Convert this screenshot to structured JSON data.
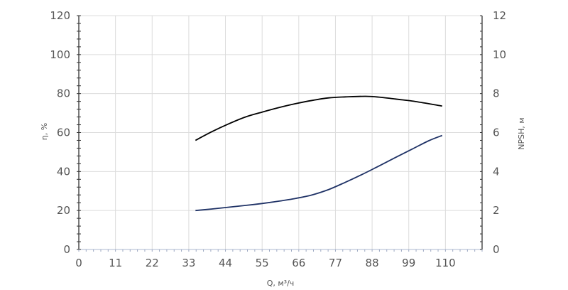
{
  "chart_data": {
    "type": "line",
    "xlabel": "Q, м³/ч",
    "ylabel_left": "η, %",
    "ylabel_right": "NPSH, м",
    "xlim": [
      0,
      121
    ],
    "ylim_left": [
      0,
      120
    ],
    "ylim_right": [
      0,
      12
    ],
    "x_ticks": [
      0,
      11,
      22,
      33,
      44,
      55,
      66,
      77,
      88,
      99,
      110
    ],
    "y_ticks_left": [
      0,
      20,
      40,
      60,
      80,
      100,
      120
    ],
    "y_ticks_right": [
      0,
      2,
      4,
      6,
      8,
      10,
      12
    ],
    "grid": true,
    "series": [
      {
        "axis": "left",
        "color": "#000000",
        "x": [
          35,
          40,
          45,
          50,
          55,
          60,
          65,
          70,
          75,
          80,
          86,
          90,
          95,
          100,
          105,
          109
        ],
        "y": [
          56,
          60.5,
          64.5,
          68,
          70.5,
          72.8,
          74.8,
          76.5,
          77.8,
          78.3,
          78.6,
          78.2,
          77.2,
          76.2,
          74.8,
          73.6
        ]
      },
      {
        "axis": "right",
        "color": "#1f3266",
        "x": [
          35,
          40,
          45,
          50,
          55,
          60,
          65,
          70,
          75,
          80,
          85,
          90,
          95,
          100,
          105,
          109
        ],
        "y": [
          2.0,
          2.08,
          2.17,
          2.26,
          2.36,
          2.48,
          2.62,
          2.8,
          3.08,
          3.45,
          3.85,
          4.28,
          4.72,
          5.15,
          5.58,
          5.85
        ]
      }
    ]
  }
}
